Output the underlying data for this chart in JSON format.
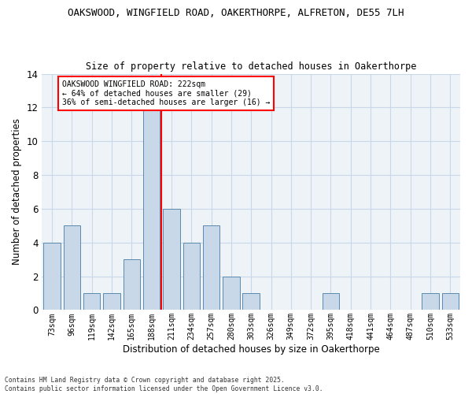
{
  "title1": "OAKSWOOD, WINGFIELD ROAD, OAKERTHORPE, ALFRETON, DE55 7LH",
  "title2": "Size of property relative to detached houses in Oakerthorpe",
  "xlabel": "Distribution of detached houses by size in Oakerthorpe",
  "ylabel": "Number of detached properties",
  "categories": [
    "73sqm",
    "96sqm",
    "119sqm",
    "142sqm",
    "165sqm",
    "188sqm",
    "211sqm",
    "234sqm",
    "257sqm",
    "280sqm",
    "303sqm",
    "326sqm",
    "349sqm",
    "372sqm",
    "395sqm",
    "418sqm",
    "441sqm",
    "464sqm",
    "487sqm",
    "510sqm",
    "533sqm"
  ],
  "values": [
    4,
    5,
    1,
    1,
    3,
    12,
    6,
    4,
    5,
    2,
    1,
    0,
    0,
    0,
    1,
    0,
    0,
    0,
    0,
    1,
    1
  ],
  "bar_color": "#c8d8e8",
  "bar_edge_color": "#5a8ab0",
  "vline_x_bin": 5,
  "vline_color": "red",
  "annotation_text": "OAKSWOOD WINGFIELD ROAD: 222sqm\n← 64% of detached houses are smaller (29)\n36% of semi-detached houses are larger (16) →",
  "annotation_box_color": "white",
  "annotation_box_edge": "red",
  "ylim": [
    0,
    14
  ],
  "yticks": [
    0,
    2,
    4,
    6,
    8,
    10,
    12,
    14
  ],
  "footer": "Contains HM Land Registry data © Crown copyright and database right 2025.\nContains public sector information licensed under the Open Government Licence v3.0.",
  "grid_color": "#c8d8e8",
  "bg_color": "#eef3f8"
}
